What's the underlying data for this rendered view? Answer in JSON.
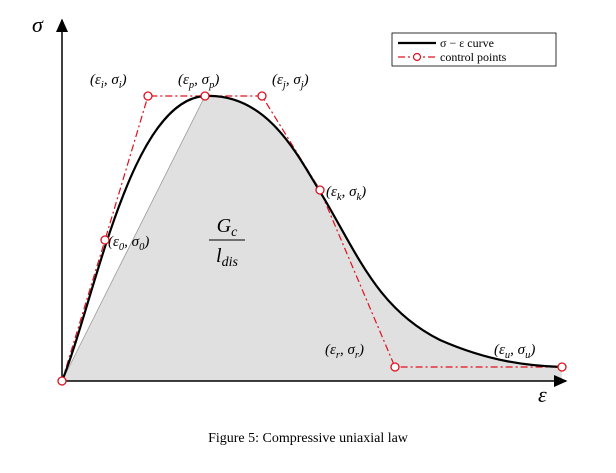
{
  "figure": {
    "axis_labels": {
      "y": "σ",
      "x": "ε"
    },
    "legend": [
      "σ − ε curve",
      "control points"
    ],
    "area_label": {
      "numerator": [
        {
          "text": "G"
        },
        {
          "sub": "c"
        }
      ],
      "denominator": [
        {
          "text": "l"
        },
        {
          "sub": "dis"
        }
      ]
    },
    "point_labels": [
      [
        {
          "text": "(ε"
        },
        {
          "sub": "i"
        },
        {
          "text": ", σ"
        },
        {
          "sub": "i"
        },
        {
          "text": ")"
        }
      ],
      [
        {
          "text": "(ε"
        },
        {
          "sub": "p"
        },
        {
          "text": ", σ"
        },
        {
          "sub": "p"
        },
        {
          "text": ")"
        }
      ],
      [
        {
          "text": "(ε"
        },
        {
          "sub": "j"
        },
        {
          "text": ", σ"
        },
        {
          "sub": "j"
        },
        {
          "text": ")"
        }
      ],
      [
        {
          "text": "(ε"
        },
        {
          "sub": "k"
        },
        {
          "text": ", σ"
        },
        {
          "sub": "k"
        },
        {
          "text": ")"
        }
      ],
      [
        {
          "text": "(ε"
        },
        {
          "sub": "0"
        },
        {
          "text": ", σ"
        },
        {
          "sub": "0"
        },
        {
          "text": ")"
        }
      ],
      [
        {
          "text": "(ε"
        },
        {
          "sub": "r"
        },
        {
          "text": ", σ"
        },
        {
          "sub": "r"
        },
        {
          "text": ")"
        }
      ],
      [
        {
          "text": "(ε"
        },
        {
          "sub": "u"
        },
        {
          "text": ", σ"
        },
        {
          "sub": "u"
        },
        {
          "text": ")"
        }
      ]
    ],
    "caption": "Figure 5: Compressive uniaxial law"
  }
}
